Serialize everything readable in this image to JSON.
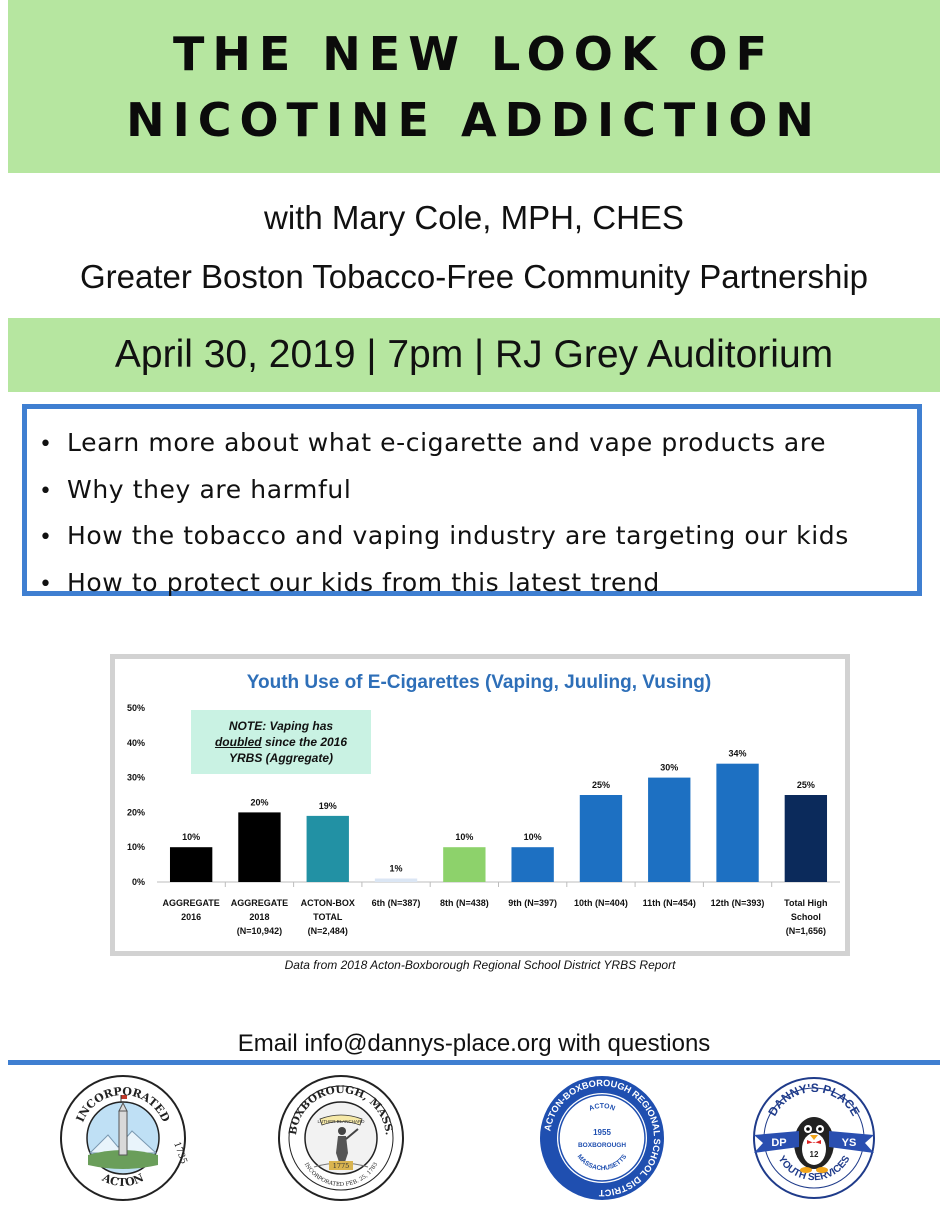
{
  "title": {
    "line1": "THE NEW LOOK OF",
    "line2": "NICOTINE ADDICTION"
  },
  "presenter": {
    "name": "with Mary Cole, MPH, CHES",
    "organization": "Greater Boston Tobacco-Free Community Partnership"
  },
  "event": {
    "details": "April 30, 2019 | 7pm | RJ Grey Auditorium"
  },
  "points": [
    "Learn more about what e-cigarette and vape products are",
    "Why they are harmful",
    "How the tobacco and vaping industry are targeting our kids",
    "How to protect our kids from this latest trend"
  ],
  "note": {
    "line1": "NOTE: Vaping has",
    "underlined": "doubled",
    "line2_rest": " since the 2016",
    "line3": "YRBS (Aggregate)"
  },
  "chart_data": {
    "type": "bar",
    "title": "Youth Use of E-Cigarettes (Vaping, Juuling, Vusing)",
    "xlabel": "",
    "ylabel": "",
    "ylim": [
      0,
      50
    ],
    "yticks": [
      "0%",
      "10%",
      "20%",
      "30%",
      "40%",
      "50%"
    ],
    "grid": false,
    "categories": [
      [
        "AGGREGATE",
        "2016"
      ],
      [
        "AGGREGATE",
        "2018",
        "(N=10,942)"
      ],
      [
        "ACTON-BOX",
        "TOTAL",
        "(N=2,484)"
      ],
      [
        "6th (N=387)"
      ],
      [
        "8th (N=438)"
      ],
      [
        "9th (N=397)"
      ],
      [
        "10th (N=404)"
      ],
      [
        "11th (N=454)"
      ],
      [
        "12th (N=393)"
      ],
      [
        "Total High",
        "School",
        "(N=1,656)"
      ]
    ],
    "values": [
      10,
      20,
      19,
      1,
      10,
      10,
      25,
      30,
      34,
      25
    ],
    "value_labels": [
      "10%",
      "20%",
      "19%",
      "1%",
      "10%",
      "10%",
      "25%",
      "30%",
      "34%",
      "25%"
    ],
    "colors": [
      "#000000",
      "#000000",
      "#2291a4",
      "#dbe6f4",
      "#8dd26b",
      "#1d70c2",
      "#1d70c2",
      "#1d70c2",
      "#1d70c2",
      "#0b2a5b"
    ],
    "source": "Data from 2018 Acton-Boxborough Regional School District YRBS Report"
  },
  "contact": {
    "email_line": "Email info@dannys-place.org with questions"
  },
  "logos": {
    "acton": {
      "top": "INCORPORATED",
      "year": "1735",
      "bottom": "ACTON"
    },
    "boxborough": {
      "top": "BOXBOROUGH, MASS.",
      "banner": "LUTHER BLANCHARD",
      "year": "1775",
      "bottom": "INCORPORATED FEB. 25, 1783"
    },
    "district": {
      "ring": "ACTON-BOXBOROUGH REGIONAL SCHOOL DISTRICT",
      "inner_top": "ACTON",
      "year": "1955",
      "inner_mid": "BOXBOROUGH",
      "inner_bottom": "MASSACHUSETTS"
    },
    "dannys": {
      "top": "DANNY'S PLACE",
      "left": "DP",
      "number": "12",
      "right": "YS",
      "bottom": "YOUTH SERVICES"
    }
  },
  "colors": {
    "band_green": "#b6e6a0",
    "accent_blue": "#3f7fd1",
    "chart_title_blue": "#2e6fb8",
    "note_bg": "#c9f2e3"
  }
}
